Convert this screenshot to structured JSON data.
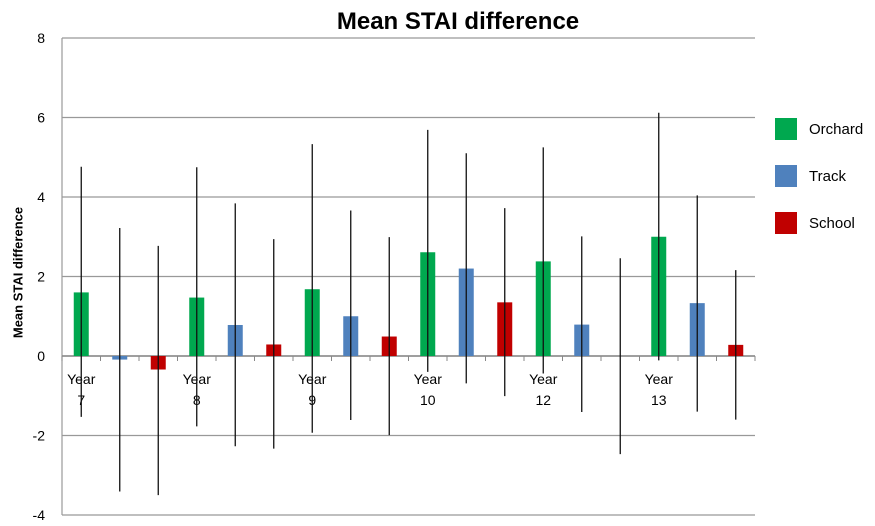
{
  "chart_data": {
    "type": "bar",
    "title": "Mean STAI difference",
    "ylabel": "Mean STAI difference",
    "xlabel": "",
    "ylim": [
      -4,
      8
    ],
    "yticks": [
      -4,
      -2,
      0,
      2,
      4,
      6,
      8
    ],
    "grid": true,
    "legend_position": "right",
    "categories": [
      [
        "Year",
        "7"
      ],
      [
        "Year",
        "8"
      ],
      [
        "Year",
        "9"
      ],
      [
        "Year",
        "10"
      ],
      [
        "Year",
        "12"
      ],
      [
        "Year",
        "13"
      ]
    ],
    "series": [
      {
        "name": "Orchard",
        "color": "#00a84f",
        "values": [
          1.6,
          1.47,
          1.68,
          2.61,
          2.38,
          3.0
        ],
        "error_high": [
          4.76,
          4.75,
          5.33,
          5.69,
          5.25,
          6.12
        ],
        "error_low": [
          -1.53,
          -1.77,
          -1.93,
          -0.4,
          -0.44,
          -0.11
        ]
      },
      {
        "name": "Track",
        "color": "#4f81bd",
        "values": [
          -0.09,
          0.78,
          1.0,
          2.2,
          0.79,
          1.33
        ],
        "error_high": [
          3.22,
          3.84,
          3.66,
          5.1,
          3.01,
          4.04
        ],
        "error_low": [
          -3.41,
          -2.27,
          -1.61,
          -0.69,
          -1.41,
          -1.4
        ]
      },
      {
        "name": "School",
        "color": "#c00000",
        "values": [
          -0.34,
          0.29,
          0.49,
          1.35,
          0,
          0.28
        ],
        "error_high": [
          2.77,
          2.94,
          2.99,
          3.72,
          2.46,
          2.16
        ],
        "error_low": [
          -3.5,
          -2.33,
          -1.99,
          -1.01,
          -2.47,
          -1.6
        ]
      }
    ]
  }
}
